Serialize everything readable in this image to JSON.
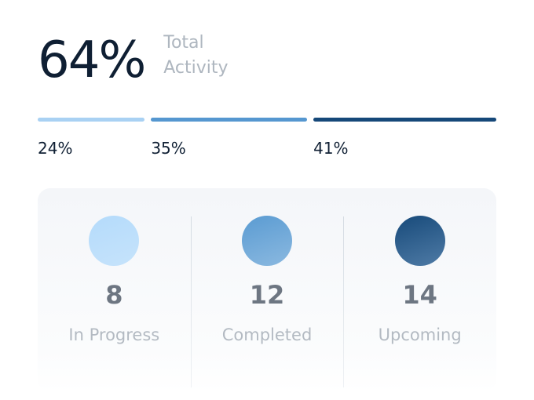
{
  "header": {
    "value": "64%",
    "label": "Total Activity"
  },
  "segments": {
    "values": [
      24,
      35,
      41
    ],
    "value_labels": [
      "24%",
      "35%",
      "41%"
    ],
    "colors": [
      "#a9d1f3",
      "#5597d0",
      "#164879"
    ]
  },
  "stats": [
    {
      "value": "8",
      "label": "In Progress",
      "colors": [
        "#b4dbfb",
        "#c6e3fb"
      ]
    },
    {
      "value": "12",
      "label": "Completed",
      "colors": [
        "#5a9bd2",
        "#8bb9e0"
      ]
    },
    {
      "value": "14",
      "label": "Upcoming",
      "colors": [
        "#174a7a",
        "#4f7ba6"
      ]
    }
  ]
}
